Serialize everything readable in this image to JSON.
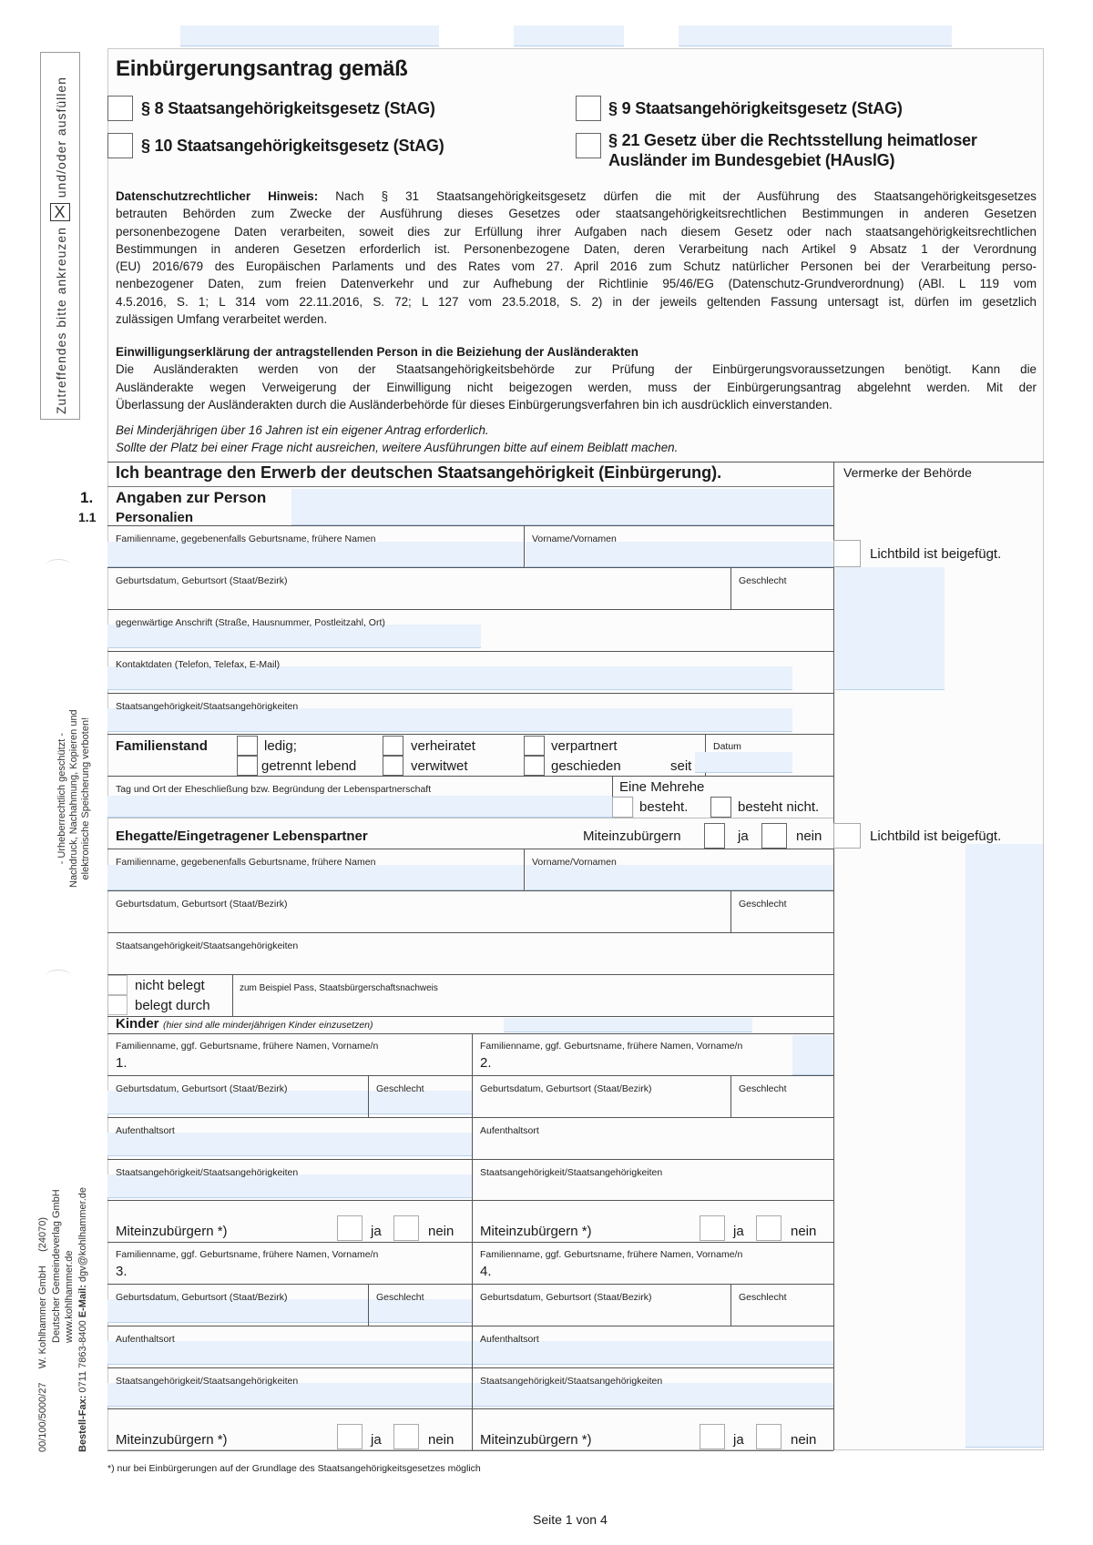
{
  "header": {
    "title": "Einbürgerungsantrag gemäß",
    "options": [
      "§ 8 Staatsangehörigkeitsgesetz (StAG)",
      "§ 9 Staatsangehörigkeitsgesetz (StAG)",
      "§ 10 Staatsangehörigkeitsgesetz (StAG)",
      "§ 21 Gesetz über die Rechtsstellung heimatloser",
      "Ausländer im Bundesgebiet (HAuslG)"
    ]
  },
  "margin": {
    "instruction_part1": "Zutreffendes bitte ankreuzen",
    "instruction_mark": "X",
    "instruction_part2": "und/oder ausfüllen",
    "copyright": [
      "- Urheberrechtlich geschützt -",
      "Nachdruck, Nachahmung, Kopieren und",
      "elektronische Speicherung verboten!"
    ],
    "publisher": [
      "00/100/5000/27     W. Kohlhammer GmbH     (24070)",
      "Deutscher Gemeindeverlag GmbH",
      "www.kohlhammer.de"
    ],
    "order_fax_label": "Bestell-Fax:",
    "order_fax": " 0711 7863-8400 ",
    "email_label": "E-Mail:",
    "email": " dgv@kohlhammer.de"
  },
  "privacy": {
    "bold_lead": "Datenschutzrechtlicher Hinweis:",
    "lines": [
      " Nach § 31 Staatsangehörigkeitsgesetz dürfen die mit der Ausführung des Staatsangehörigkeitsgesetzes",
      "betrauten Behörden zum Zwecke der Ausführung dieses Gesetzes oder staatsangehörigkeitsrechtlichen Bestimmungen in anderen Gesetzen",
      "personenbezogene Daten verarbeiten, soweit dies zur Erfüllung ihrer Aufgaben nach diesem Gesetz oder nach staatsangehörigkeitsrechtlichen",
      "Bestimmungen in anderen Gesetzen erforderlich ist. Personenbezogene Daten, deren Verarbeitung nach Artikel 9 Absatz 1 der Verordnung",
      "(EU) 2016/679 des Europäischen Parlaments und des Rates vom 27. April 2016 zum Schutz natürlicher Personen bei der Verarbeitung perso-",
      "nenbezogener Daten, zum freien Datenverkehr und zur Aufhebung der Richtlinie 95/46/EG (Datenschutz-Grundverordnung) (ABl. L 119 vom",
      "4.5.2016, S. 1; L 314 vom 22.11.2016, S. 72; L 127 vom 23.5.2018, S. 2) in der jeweils geltenden Fassung untersagt ist, dürfen im gesetzlich",
      "zulässigen Umfang verarbeitet werden."
    ]
  },
  "consent": {
    "heading": "Einwilligungserklärung der antragstellenden Person in die Beiziehung der Ausländerakten",
    "lines": [
      "Die Ausländerakten werden von der Staatsangehörigkeitsbehörde zur Prüfung der Einbürgerungsvoraussetzungen benötigt. Kann die",
      "Ausländerakte wegen Verweigerung der Einwilligung nicht beigezogen werden, muss der Einbürgerungsantrag abgelehnt werden. Mit der",
      "Überlassung der Ausländerakten durch die Ausländerbehörde für dieses Einbürgerungsverfahren bin ich ausdrücklich einverstanden."
    ]
  },
  "notes": [
    "Bei Minderjährigen über 16 Jahren ist ein eigener Antrag erforderlich.",
    "Sollte der Platz bei einer Frage nicht ausreichen, weitere Ausführungen bitte auf einem Beiblatt machen."
  ],
  "application": {
    "statement": "Ich beantrage den Erwerb der deutschen Staatsangehörigkeit (Einbürgerung).",
    "authority_notes": "Vermerke der Behörde",
    "photo_attached": "Lichtbild ist beigefügt."
  },
  "section1": {
    "num": "1.",
    "title": "Angaben zur Person",
    "sub_num": "1.1",
    "sub_title": "Personalien",
    "fields": {
      "surname": "Familienname, gegebenenfalls Geburtsname, frühere Namen",
      "firstname": "Vorname/Vornamen",
      "birth": "Geburtsdatum, Geburtsort (Staat/Bezirk)",
      "sex": "Geschlecht",
      "address": "gegenwärtige Anschrift (Straße, Hausnummer, Postleitzahl, Ort)",
      "contact": "Kontaktdaten (Telefon, Telefax, E-Mail)",
      "nationality": "Staatsangehörigkeit/Staatsangehörigkeiten"
    },
    "marital": {
      "label": "Familienstand",
      "options": [
        "ledig;",
        "getrennt lebend",
        "verheiratet",
        "verwitwet",
        "verpartnert",
        "geschieden"
      ],
      "since": "seit",
      "date": "Datum"
    },
    "marriage": {
      "label": "Tag und Ort der Eheschließung bzw. Begründung der Lebenspartnerschaft",
      "multi": "Eine Mehrehe",
      "exists": "besteht.",
      "not_exists": "besteht nicht."
    },
    "spouse": {
      "title": "Ehegatte/Eingetragener Lebenspartner",
      "co": "Miteinzubürgern",
      "yes": "ja",
      "no": "nein"
    },
    "proof": {
      "not": "nicht belegt",
      "by": "belegt durch",
      "hint": "zum Beispiel Pass, Staatsbürgerschaftsnachweis"
    },
    "children": {
      "title": "Kinder",
      "hint": "(hier sind alle minderjährigen Kinder einzusetzen)",
      "name": "Familienname, ggf. Geburtsname, frühere Namen, Vorname/n",
      "birth": "Geburtsdatum, Geburtsort (Staat/Bezirk)",
      "sex": "Geschlecht",
      "residence": "Aufenthaltsort",
      "nationality": "Staatsangehörigkeit/Staatsangehörigkeiten",
      "co": "Miteinzubürgern *)",
      "yes": "ja",
      "no": "nein",
      "numbers": [
        "1.",
        "2.",
        "3.",
        "4."
      ]
    }
  },
  "footnote": "*) nur bei Einbürgerungen auf der Grundlage des Staatsangehörigkeitsgesetzes möglich",
  "page": "Seite 1 von 4"
}
